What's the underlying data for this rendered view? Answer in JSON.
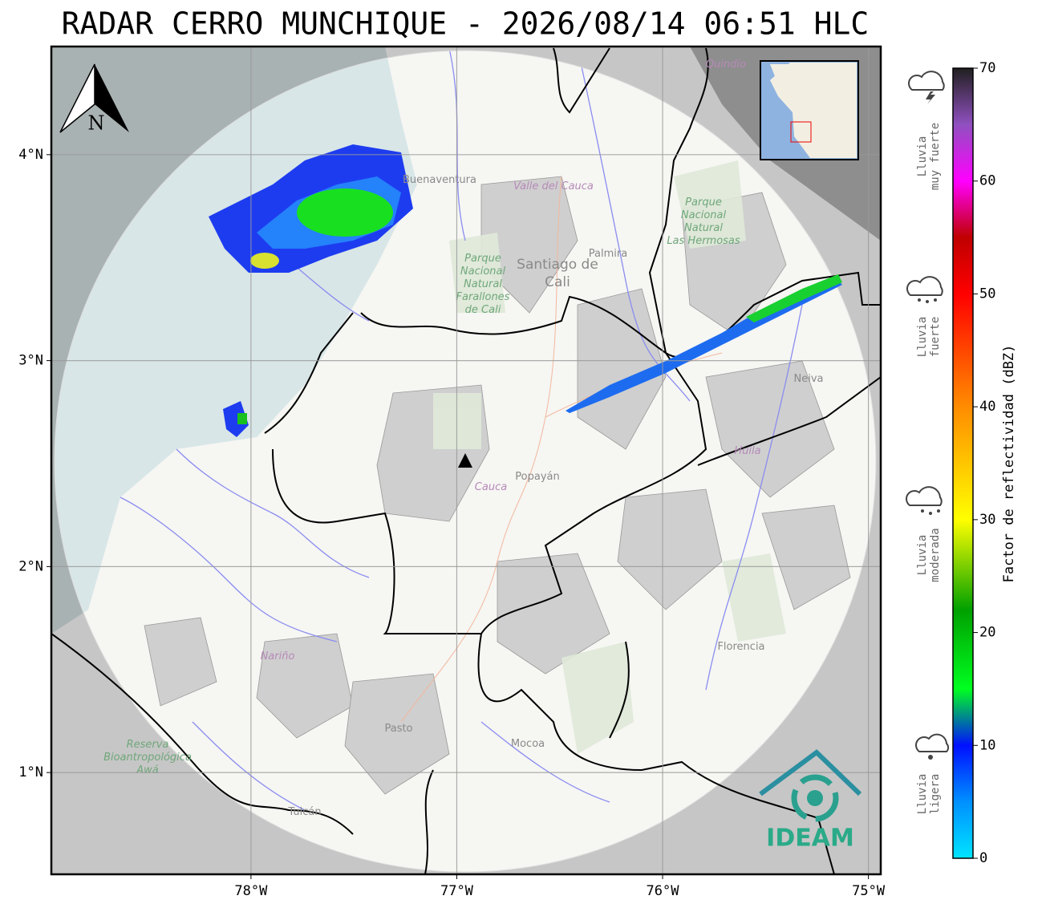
{
  "title": "RADAR CERRO MUNCHIQUE - 2026/08/14 06:51 HLC",
  "map": {
    "xlim": [
      -78.97,
      -74.94
    ],
    "ylim": [
      0.506,
      4.525
    ],
    "xticks": [
      {
        "value": -78,
        "label": "78°W"
      },
      {
        "value": -77,
        "label": "77°W"
      },
      {
        "value": -76,
        "label": "76°W"
      },
      {
        "value": -75,
        "label": "75°W"
      }
    ],
    "yticks": [
      {
        "value": 1,
        "label": "1°N"
      },
      {
        "value": 2,
        "label": "2°N"
      },
      {
        "value": 3,
        "label": "3°N"
      },
      {
        "value": 4,
        "label": "4°N"
      }
    ],
    "north_label": "N",
    "logo": "IDEAM",
    "places": [
      {
        "lines": [
          "Quindío"
        ]
      },
      {
        "lines": [
          "Buenaventura"
        ]
      },
      {
        "lines": [
          "Valle del Cauca"
        ]
      },
      {
        "lines": [
          "Parque",
          "Nacional",
          "Natural",
          "Farallones",
          "de Cali"
        ]
      },
      {
        "lines": [
          "Santiago de",
          "Cali"
        ]
      },
      {
        "lines": [
          "Palmira"
        ]
      },
      {
        "lines": [
          "Parque",
          "Nacional",
          "Natural",
          "Las Hermosas"
        ]
      },
      {
        "lines": [
          "Neiva"
        ]
      },
      {
        "lines": [
          "Huila"
        ]
      },
      {
        "lines": [
          "Cauca"
        ]
      },
      {
        "lines": [
          "Popayán"
        ]
      },
      {
        "lines": [
          "Nariño"
        ]
      },
      {
        "lines": [
          "Pasto"
        ]
      },
      {
        "lines": [
          "Mocoa"
        ]
      },
      {
        "lines": [
          "Florencia"
        ]
      },
      {
        "lines": [
          "Reserva",
          "Bioantropológica",
          "Awá"
        ]
      },
      {
        "lines": [
          "Tulcán"
        ]
      }
    ]
  },
  "colorbar": {
    "label": "Factor de reflectividad (dBZ)",
    "lim": [
      0,
      70
    ],
    "ticks": [
      0,
      10,
      20,
      30,
      40,
      50,
      60,
      70
    ],
    "stops": [
      {
        "value": 0,
        "color": "#00e5ff"
      },
      {
        "value": 5,
        "color": "#0090ff"
      },
      {
        "value": 10,
        "color": "#0010ff"
      },
      {
        "value": 15,
        "color": "#00ff20"
      },
      {
        "value": 22,
        "color": "#00a000"
      },
      {
        "value": 30,
        "color": "#ffff00"
      },
      {
        "value": 40,
        "color": "#ff8c00"
      },
      {
        "value": 50,
        "color": "#ff0000"
      },
      {
        "value": 55,
        "color": "#c00000"
      },
      {
        "value": 60,
        "color": "#ff00ff"
      },
      {
        "value": 65,
        "color": "#9050c0"
      },
      {
        "value": 70,
        "color": "#202020"
      }
    ],
    "categories": [
      {
        "lines": [
          "Lluvia",
          "ligera"
        ]
      },
      {
        "lines": [
          "Lluvia",
          "moderada"
        ]
      },
      {
        "lines": [
          "Lluvia",
          "fuerte"
        ]
      },
      {
        "lines": [
          "Lluvia",
          "muy fuerte"
        ]
      }
    ]
  }
}
